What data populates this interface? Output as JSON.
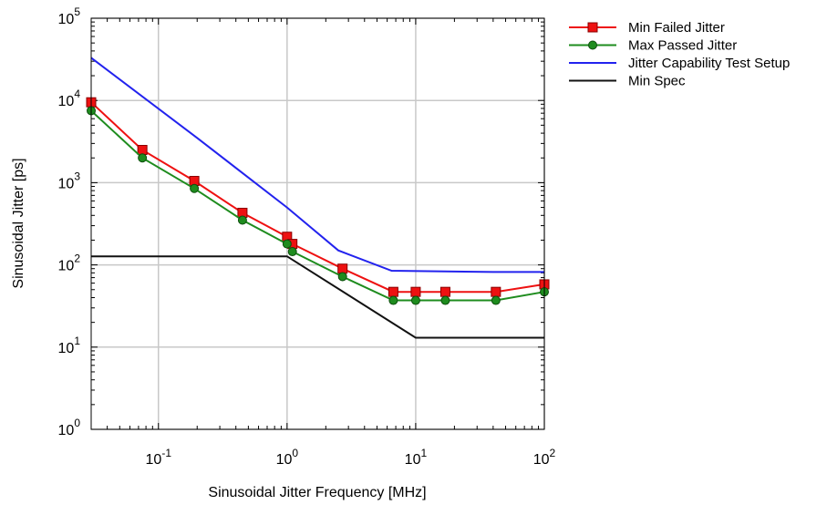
{
  "chart_data": {
    "type": "line",
    "title": "",
    "xlabel": "Sinusoidal Jitter Frequency [MHz]",
    "ylabel": "Sinusoidal Jitter  [ps]",
    "xscale": "log",
    "yscale": "log",
    "xlim": [
      0.03,
      100
    ],
    "ylim": [
      1,
      100000
    ],
    "grid": true,
    "legend_position": "outside-top-right",
    "x_ticks": [
      {
        "base": "10",
        "exp": "-1",
        "value": 0.1
      },
      {
        "base": "10",
        "exp": "0",
        "value": 1
      },
      {
        "base": "10",
        "exp": "1",
        "value": 10
      },
      {
        "base": "10",
        "exp": "2",
        "value": 100
      }
    ],
    "y_ticks": [
      {
        "base": "10",
        "exp": "0",
        "value": 1
      },
      {
        "base": "10",
        "exp": "1",
        "value": 10
      },
      {
        "base": "10",
        "exp": "2",
        "value": 100
      },
      {
        "base": "10",
        "exp": "3",
        "value": 1000
      },
      {
        "base": "10",
        "exp": "4",
        "value": 10000
      },
      {
        "base": "10",
        "exp": "5",
        "value": 100000
      }
    ],
    "series": [
      {
        "name": "Min Failed Jitter",
        "color": "#ee1111",
        "marker": "square",
        "x": [
          0.03,
          0.075,
          0.19,
          0.45,
          1.0,
          1.1,
          2.7,
          6.7,
          10,
          17,
          42,
          100
        ],
        "y": [
          9500,
          2500,
          1050,
          430,
          220,
          180,
          90,
          47,
          47,
          47,
          47,
          58
        ]
      },
      {
        "name": "Max Passed Jitter",
        "color": "#1e8c1e",
        "marker": "circle",
        "x": [
          0.03,
          0.075,
          0.19,
          0.45,
          1.0,
          1.1,
          2.7,
          6.7,
          10,
          17,
          42,
          100
        ],
        "y": [
          7500,
          2000,
          850,
          350,
          180,
          145,
          72,
          37,
          37,
          37,
          37,
          47
        ]
      },
      {
        "name": "Jitter Capability Test Setup",
        "color": "#2222ee",
        "marker": "none",
        "x": [
          0.03,
          0.2,
          1.0,
          2.5,
          6.5,
          40,
          100
        ],
        "y": [
          33000,
          3500,
          500,
          150,
          85,
          82,
          82
        ]
      },
      {
        "name": "Min Spec",
        "color": "#111111",
        "marker": "none",
        "x": [
          0.03,
          1.0,
          10,
          100
        ],
        "y": [
          127,
          127,
          13,
          13
        ]
      }
    ]
  }
}
